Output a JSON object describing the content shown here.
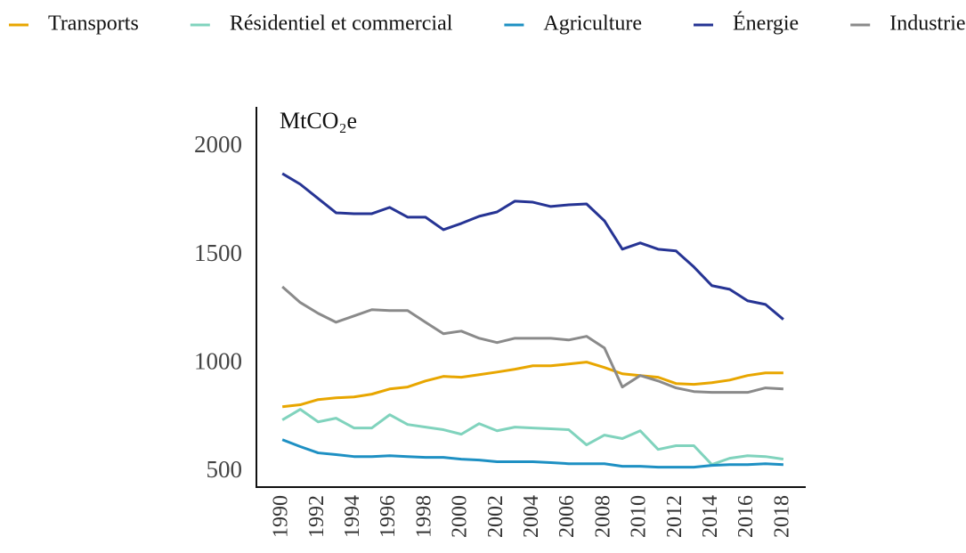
{
  "chart_data": {
    "type": "line",
    "y_label": "MtCO₂e",
    "x": [
      1990,
      1991,
      1992,
      1993,
      1994,
      1995,
      1996,
      1997,
      1998,
      1999,
      2000,
      2001,
      2002,
      2003,
      2004,
      2005,
      2006,
      2007,
      2008,
      2009,
      2010,
      2011,
      2012,
      2013,
      2014,
      2015,
      2016,
      2017,
      2018
    ],
    "series": [
      {
        "name": "Transports",
        "color": "#e8a600",
        "values": [
          801,
          810,
          834,
          842,
          846,
          859,
          883,
          892,
          920,
          941,
          937,
          949,
          961,
          974,
          990,
          990,
          998,
          1007,
          982,
          953,
          945,
          937,
          908,
          904,
          912,
          924,
          945,
          957,
          957
        ]
      },
      {
        "name": "Résidentiel et commercial",
        "color": "#80d3bd",
        "values": [
          740,
          789,
          731,
          748,
          703,
          703,
          764,
          719,
          707,
          695,
          674,
          723,
          690,
          707,
          703,
          699,
          695,
          625,
          670,
          654,
          690,
          604,
          621,
          621,
          534,
          563,
          575,
          571,
          559
        ]
      },
      {
        "name": "Agriculture",
        "color": "#1e90c3",
        "values": [
          649,
          617,
          588,
          580,
          571,
          571,
          575,
          571,
          567,
          567,
          559,
          555,
          547,
          547,
          547,
          543,
          538,
          538,
          538,
          526,
          526,
          522,
          522,
          522,
          530,
          534,
          534,
          538,
          534
        ]
      },
      {
        "name": "Énergie",
        "color": "#263494",
        "values": [
          1877,
          1828,
          1762,
          1696,
          1692,
          1692,
          1721,
          1676,
          1676,
          1618,
          1647,
          1680,
          1700,
          1750,
          1745,
          1725,
          1733,
          1737,
          1659,
          1528,
          1557,
          1528,
          1520,
          1446,
          1360,
          1343,
          1290,
          1273,
          1204
        ]
      },
      {
        "name": "Industrie",
        "color": "#8a8a8a",
        "values": [
          1355,
          1282,
          1232,
          1191,
          1220,
          1249,
          1245,
          1245,
          1191,
          1138,
          1150,
          1117,
          1097,
          1117,
          1117,
          1117,
          1109,
          1126,
          1072,
          892,
          945,
          920,
          888,
          871,
          867,
          867,
          867,
          888,
          883
        ]
      }
    ],
    "xlim": [
      1988.55,
      2019.25
    ],
    "ylim": [
      430,
      2185
    ],
    "xticks": [
      1990,
      1992,
      1994,
      1996,
      1998,
      2000,
      2002,
      2004,
      2006,
      2008,
      2010,
      2012,
      2014,
      2016,
      2018
    ],
    "yticks": [
      500,
      1000,
      1500,
      2000
    ],
    "legend": "top",
    "grid": false
  }
}
